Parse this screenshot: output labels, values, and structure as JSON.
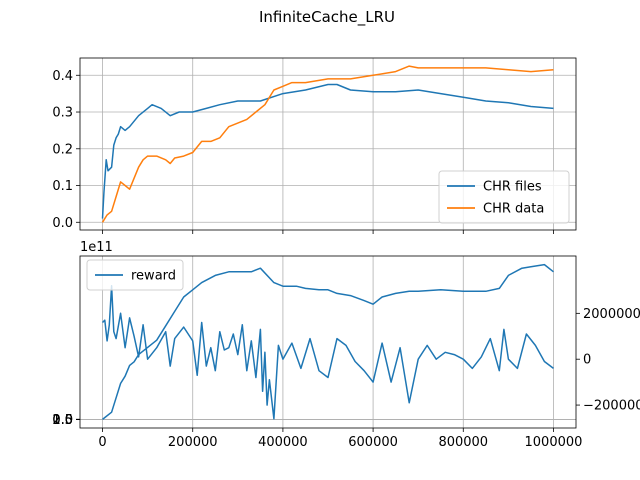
{
  "figure": {
    "title": "InfiniteCache_LRU"
  },
  "chart_data": [
    {
      "type": "line",
      "title": "",
      "xlabel": "",
      "ylabel": "",
      "xlim": [
        -50000,
        1050000
      ],
      "ylim": [
        -0.021,
        0.447
      ],
      "xticks": [
        0,
        200000,
        400000,
        600000,
        800000,
        1000000
      ],
      "yticks": [
        0.0,
        0.1,
        0.2,
        0.3,
        0.4
      ],
      "ytick_labels": [
        "0.0",
        "0.1",
        "0.2",
        "0.3",
        "0.4"
      ],
      "grid": true,
      "legend_position": "lower-right",
      "series": [
        {
          "name": "CHR files",
          "color": "#1f77b4",
          "x": [
            0,
            3000,
            8000,
            12000,
            20000,
            25000,
            30000,
            35000,
            40000,
            50000,
            60000,
            80000,
            100000,
            110000,
            130000,
            150000,
            170000,
            200000,
            230000,
            260000,
            300000,
            350000,
            400000,
            450000,
            500000,
            520000,
            550000,
            600000,
            650000,
            700000,
            750000,
            800000,
            850000,
            900000,
            950000,
            1000000
          ],
          "values": [
            0.01,
            0.08,
            0.17,
            0.14,
            0.15,
            0.21,
            0.23,
            0.24,
            0.26,
            0.25,
            0.26,
            0.29,
            0.31,
            0.32,
            0.31,
            0.29,
            0.3,
            0.3,
            0.31,
            0.32,
            0.33,
            0.33,
            0.35,
            0.36,
            0.375,
            0.375,
            0.36,
            0.355,
            0.355,
            0.36,
            0.35,
            0.34,
            0.33,
            0.325,
            0.315,
            0.31
          ]
        },
        {
          "name": "CHR data",
          "color": "#ff7f0e",
          "x": [
            0,
            10000,
            20000,
            30000,
            40000,
            50000,
            60000,
            70000,
            80000,
            90000,
            100000,
            120000,
            140000,
            150000,
            160000,
            180000,
            200000,
            220000,
            240000,
            260000,
            280000,
            300000,
            320000,
            340000,
            360000,
            380000,
            400000,
            420000,
            450000,
            500000,
            550000,
            600000,
            650000,
            680000,
            700000,
            750000,
            800000,
            850000,
            900000,
            950000,
            1000000
          ],
          "values": [
            0.0,
            0.02,
            0.03,
            0.07,
            0.11,
            0.1,
            0.09,
            0.12,
            0.15,
            0.17,
            0.18,
            0.18,
            0.17,
            0.16,
            0.175,
            0.18,
            0.19,
            0.22,
            0.22,
            0.23,
            0.26,
            0.27,
            0.28,
            0.3,
            0.32,
            0.36,
            0.37,
            0.38,
            0.38,
            0.39,
            0.39,
            0.4,
            0.41,
            0.425,
            0.42,
            0.42,
            0.42,
            0.42,
            0.415,
            0.41,
            0.415
          ]
        }
      ]
    },
    {
      "type": "line",
      "title": "",
      "xlabel": "",
      "ylabel": "",
      "xlim": [
        -50000,
        1050000
      ],
      "ylim": [
        -12000000000.0,
        227000000000.0
      ],
      "y_offset_label": "1e11",
      "xticks": [
        0,
        200000,
        400000,
        600000,
        800000,
        1000000
      ],
      "xtick_labels": [
        "0",
        "200000",
        "400000",
        "600000",
        "800000",
        "1000000"
      ],
      "yticks": [
        0.0,
        0.5,
        1.0,
        1.5,
        2.0
      ],
      "ytick_labels": [
        "0.0",
        "0.5",
        "1.0",
        "1.5",
        "2.0"
      ],
      "y2lim": [
        -3000000,
        4500000
      ],
      "y2ticks": [
        -2000000,
        0,
        2000000
      ],
      "y2tick_labels": [
        "−2000000",
        "0",
        "2000000"
      ],
      "grid": true,
      "legend_position": "upper-left",
      "series": [
        {
          "name": "reward",
          "color": "#1f77b4",
          "axis": "left",
          "x": [
            0,
            20000,
            30000,
            40000,
            50000,
            60000,
            70000,
            80000,
            100000,
            120000,
            140000,
            160000,
            180000,
            200000,
            220000,
            250000,
            280000,
            300000,
            330000,
            350000,
            380000,
            400000,
            430000,
            450000,
            480000,
            500000,
            520000,
            550000,
            580000,
            600000,
            620000,
            650000,
            680000,
            700000,
            750000,
            800000,
            850000,
            880000,
            900000,
            930000,
            950000,
            980000,
            1000000
          ],
          "values": [
            0.0,
            10000000000.0,
            30000000000.0,
            50000000000.0,
            60000000000.0,
            75000000000.0,
            80000000000.0,
            90000000000.0,
            100000000000.0,
            110000000000.0,
            130000000000.0,
            150000000000.0,
            170000000000.0,
            180000000000.0,
            190000000000.0,
            200000000000.0,
            205000000000.0,
            205000000000.0,
            205000000000.0,
            210000000000.0,
            190000000000.0,
            185000000000.0,
            185000000000.0,
            182000000000.0,
            180000000000.0,
            180000000000.0,
            175000000000.0,
            172000000000.0,
            165000000000.0,
            160000000000.0,
            170000000000.0,
            175000000000.0,
            178000000000.0,
            178000000000.0,
            180000000000.0,
            178000000000.0,
            178000000000.0,
            182000000000.0,
            200000000000.0,
            210000000000.0,
            212000000000.0,
            215000000000.0,
            205000000000.0
          ]
        },
        {
          "name": "",
          "color": "#1f77b4",
          "axis": "right",
          "x": [
            0,
            5000,
            10000,
            15000,
            20000,
            25000,
            30000,
            40000,
            50000,
            60000,
            70000,
            80000,
            90000,
            100000,
            120000,
            140000,
            150000,
            160000,
            180000,
            200000,
            210000,
            220000,
            230000,
            240000,
            250000,
            260000,
            270000,
            280000,
            290000,
            300000,
            310000,
            320000,
            330000,
            340000,
            350000,
            355000,
            360000,
            365000,
            370000,
            380000,
            390000,
            400000,
            420000,
            440000,
            460000,
            480000,
            500000,
            520000,
            540000,
            560000,
            580000,
            600000,
            620000,
            640000,
            660000,
            680000,
            700000,
            720000,
            740000,
            760000,
            780000,
            800000,
            820000,
            840000,
            860000,
            880000,
            890000,
            900000,
            920000,
            940000,
            960000,
            980000,
            1000000
          ],
          "values": [
            1600000,
            1700000,
            800000,
            1500000,
            3200000,
            1200000,
            900000,
            2000000,
            500000,
            1800000,
            1000000,
            100000,
            1500000,
            0,
            500000,
            1200000,
            -300000,
            900000,
            1400000,
            800000,
            -700000,
            1600000,
            -300000,
            500000,
            -500000,
            1200000,
            400000,
            500000,
            1100000,
            200000,
            1500000,
            -500000,
            800000,
            -800000,
            1300000,
            -1400000,
            300000,
            -2000000,
            -900000,
            -2600000,
            600000,
            0,
            700000,
            -400000,
            900000,
            -500000,
            -800000,
            900000,
            600000,
            -100000,
            -500000,
            -1000000,
            700000,
            -1000000,
            500000,
            -1900000,
            0,
            600000,
            0,
            300000,
            200000,
            0,
            -400000,
            100000,
            900000,
            -500000,
            1300000,
            0,
            -400000,
            1100000,
            600000,
            -100000,
            -400000
          ]
        }
      ]
    }
  ]
}
